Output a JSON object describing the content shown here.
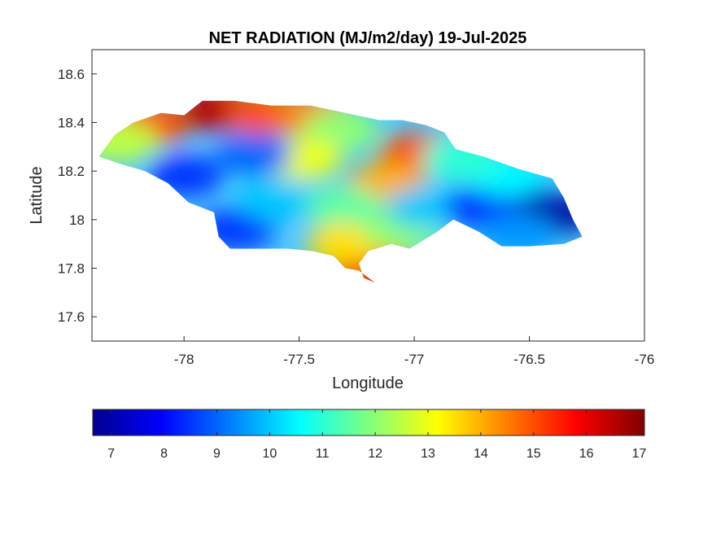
{
  "chart_data": {
    "type": "heatmap",
    "title": "NET RADIATION (MJ/m2/day) 19-Jul-2025",
    "xlabel": "Longitude",
    "ylabel": "Latitude",
    "xlim": [
      -78.4,
      -76
    ],
    "ylim": [
      17.5,
      18.7
    ],
    "xticks": [
      -78,
      -77.5,
      -77,
      -76.5,
      -76
    ],
    "yticks": [
      17.6,
      17.8,
      18,
      18.2,
      18.4,
      18.6
    ],
    "grid": false,
    "colormap": "jet",
    "colorbar": {
      "orientation": "horizontal",
      "placement": "bottom",
      "range": [
        6.65,
        17.1
      ],
      "ticks": [
        7,
        8,
        9,
        10,
        11,
        12,
        13,
        14,
        15,
        16,
        17
      ]
    },
    "outline": [
      [
        -78.37,
        18.26
      ],
      [
        -78.3,
        18.35
      ],
      [
        -78.22,
        18.4
      ],
      [
        -78.1,
        18.44
      ],
      [
        -78.0,
        18.43
      ],
      [
        -77.92,
        18.49
      ],
      [
        -77.78,
        18.49
      ],
      [
        -77.62,
        18.47
      ],
      [
        -77.45,
        18.47
      ],
      [
        -77.3,
        18.44
      ],
      [
        -77.15,
        18.41
      ],
      [
        -77.05,
        18.41
      ],
      [
        -76.95,
        18.39
      ],
      [
        -76.87,
        18.36
      ],
      [
        -76.82,
        18.29
      ],
      [
        -76.7,
        18.26
      ],
      [
        -76.55,
        18.21
      ],
      [
        -76.4,
        18.17
      ],
      [
        -76.35,
        18.09
      ],
      [
        -76.31,
        18.0
      ],
      [
        -76.27,
        17.93
      ],
      [
        -76.35,
        17.9
      ],
      [
        -76.5,
        17.89
      ],
      [
        -76.62,
        17.89
      ],
      [
        -76.72,
        17.95
      ],
      [
        -76.83,
        18.0
      ],
      [
        -76.9,
        17.95
      ],
      [
        -77.02,
        17.88
      ],
      [
        -77.1,
        17.9
      ],
      [
        -77.2,
        17.87
      ],
      [
        -77.24,
        17.82
      ],
      [
        -77.22,
        17.76
      ],
      [
        -77.17,
        17.74
      ],
      [
        -77.24,
        17.79
      ],
      [
        -77.3,
        17.8
      ],
      [
        -77.35,
        17.85
      ],
      [
        -77.44,
        17.87
      ],
      [
        -77.55,
        17.88
      ],
      [
        -77.68,
        17.88
      ],
      [
        -77.8,
        17.88
      ],
      [
        -77.85,
        17.93
      ],
      [
        -77.87,
        18.03
      ],
      [
        -77.98,
        18.07
      ],
      [
        -78.07,
        18.15
      ],
      [
        -78.17,
        18.2
      ],
      [
        -78.28,
        18.23
      ],
      [
        -78.37,
        18.26
      ]
    ],
    "value_regions": [
      {
        "lon": -77.86,
        "lat": 18.45,
        "value": 16.5
      },
      {
        "lon": -77.65,
        "lat": 18.44,
        "value": 15.0
      },
      {
        "lon": -77.45,
        "lat": 18.43,
        "value": 14.5
      },
      {
        "lon": -78.15,
        "lat": 18.39,
        "value": 15.0
      },
      {
        "lon": -78.28,
        "lat": 18.32,
        "value": 12.5
      },
      {
        "lon": -77.32,
        "lat": 18.37,
        "value": 12.0
      },
      {
        "lon": -76.98,
        "lat": 18.27,
        "value": 15.0
      },
      {
        "lon": -77.12,
        "lat": 18.15,
        "value": 14.0
      },
      {
        "lon": -77.48,
        "lat": 18.25,
        "value": 13.0
      },
      {
        "lon": -78.0,
        "lat": 18.18,
        "value": 8.5
      },
      {
        "lon": -77.7,
        "lat": 18.27,
        "value": 9.0
      },
      {
        "lon": -77.77,
        "lat": 17.96,
        "value": 8.5
      },
      {
        "lon": -77.6,
        "lat": 18.08,
        "value": 10.0
      },
      {
        "lon": -77.3,
        "lat": 18.05,
        "value": 11.5
      },
      {
        "lon": -77.2,
        "lat": 17.82,
        "value": 15.0
      },
      {
        "lon": -77.2,
        "lat": 17.76,
        "value": 16.0
      },
      {
        "lon": -77.3,
        "lat": 17.9,
        "value": 13.5
      },
      {
        "lon": -77.05,
        "lat": 17.95,
        "value": 12.0
      },
      {
        "lon": -76.95,
        "lat": 18.05,
        "value": 10.0
      },
      {
        "lon": -76.7,
        "lat": 18.05,
        "value": 8.5
      },
      {
        "lon": -76.55,
        "lat": 18.08,
        "value": 8.0
      },
      {
        "lon": -76.4,
        "lat": 18.02,
        "value": 7.0
      },
      {
        "lon": -76.6,
        "lat": 18.18,
        "value": 10.5
      },
      {
        "lon": -76.8,
        "lat": 18.25,
        "value": 11.0
      },
      {
        "lon": -76.55,
        "lat": 17.94,
        "value": 9.5
      }
    ]
  }
}
